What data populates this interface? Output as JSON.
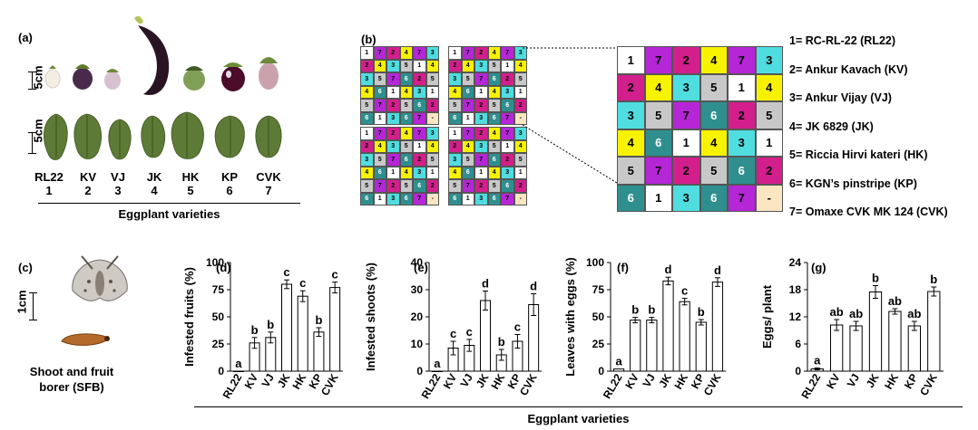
{
  "panels": {
    "a": "(a)",
    "b": "(b)",
    "c": "(c)"
  },
  "scale": {
    "fruit": "5cm",
    "leaf": "5cm",
    "insect": "1cm"
  },
  "varieties": [
    {
      "abbr": "RL22",
      "num": "1"
    },
    {
      "abbr": "KV",
      "num": "2"
    },
    {
      "abbr": "VJ",
      "num": "3"
    },
    {
      "abbr": "JK",
      "num": "4"
    },
    {
      "abbr": "HK",
      "num": "5"
    },
    {
      "abbr": "KP",
      "num": "6"
    },
    {
      "abbr": "CVK",
      "num": "7"
    }
  ],
  "a_xlabel": "Eggplant varieties",
  "c_caption": [
    "Shoot and fruit",
    "borer (SFB)"
  ],
  "legend": [
    "1= RC-RL-22 (RL22)",
    "2= Ankur Kavach (KV)",
    "3= Ankur Vijay (VJ)",
    "4= JK 6829 (JK)",
    "5= Riccia Hirvi kateri (HK)",
    "6= KGN’s pinstripe (KP)",
    "7= Omaxe CVK MK 124 (CVK)"
  ],
  "colors": {
    "1": "#ffffff",
    "2": "#d21f8c",
    "3": "#4fdde0",
    "4": "#f7f200",
    "5": "#c8c8c8",
    "6": "#2f8f8f",
    "7": "#b526d6",
    "-": "#fbe6c2"
  },
  "grid": [
    [
      "1",
      "7",
      "2",
      "4",
      "7",
      "3"
    ],
    [
      "2",
      "4",
      "3",
      "5",
      "1",
      "4"
    ],
    [
      "3",
      "5",
      "7",
      "6",
      "2",
      "5"
    ],
    [
      "4",
      "6",
      "1",
      "4",
      "3",
      "1"
    ],
    [
      "5",
      "7",
      "2",
      "5",
      "6",
      "2"
    ],
    [
      "6",
      "1",
      "3",
      "6",
      "7",
      "-"
    ]
  ],
  "bottom_xlabel": "Eggplant varieties",
  "chart_data": [
    {
      "panel": "(d)",
      "type": "bar",
      "categories": [
        "RL22",
        "KV",
        "VJ",
        "JK",
        "HK",
        "KP",
        "CVK"
      ],
      "values": [
        0,
        26,
        31,
        80,
        69,
        36,
        77
      ],
      "errors": [
        0,
        5,
        5,
        4,
        5,
        4,
        5
      ],
      "letters": [
        "a",
        "b",
        "b",
        "c",
        "c",
        "b",
        "c"
      ],
      "ylabel": "Infested fruits (%)",
      "ylim": [
        0,
        100
      ],
      "yticks": [
        "0",
        "25",
        "50",
        "75",
        "100"
      ]
    },
    {
      "panel": "(e)",
      "type": "bar",
      "categories": [
        "RL22",
        "KV",
        "VJ",
        "JK",
        "HK",
        "KP",
        "CVK"
      ],
      "values": [
        0,
        8.5,
        9.5,
        26,
        6,
        11,
        24.5
      ],
      "errors": [
        0,
        2.5,
        2.2,
        3.5,
        2,
        2.5,
        4
      ],
      "letters": [
        "a",
        "c",
        "c",
        "d",
        "b",
        "c",
        "d"
      ],
      "ylabel": "Infested shoots (%)",
      "ylim": [
        0,
        40
      ],
      "yticks": [
        "0",
        "10",
        "20",
        "30",
        "40"
      ]
    },
    {
      "panel": "(f)",
      "type": "bar",
      "categories": [
        "RL22",
        "KV",
        "VJ",
        "JK",
        "HK",
        "KP",
        "CVK"
      ],
      "values": [
        2,
        47,
        47,
        83,
        64,
        45,
        82
      ],
      "errors": [
        0,
        2.5,
        2.5,
        3.5,
        3,
        2.5,
        4
      ],
      "letters": [
        "a",
        "b",
        "b",
        "d",
        "c",
        "b",
        "d"
      ],
      "ylabel": "Leaves with eggs (%)",
      "ylim": [
        0,
        100
      ],
      "yticks": [
        "0",
        "25",
        "50",
        "75",
        "100"
      ]
    },
    {
      "panel": "(g)",
      "type": "bar",
      "categories": [
        "RL22",
        "KV",
        "VJ",
        "JK",
        "HK",
        "KP",
        "CVK"
      ],
      "values": [
        0.5,
        10.2,
        10,
        17.5,
        13.2,
        10,
        17.6
      ],
      "errors": [
        0.2,
        1.2,
        1,
        1.4,
        0.6,
        1,
        1
      ],
      "letters": [
        "a",
        "ab",
        "ab",
        "b",
        "ab",
        "ab",
        "b"
      ],
      "ylabel": "Eggs/ plant",
      "ylim": [
        0,
        24
      ],
      "yticks": [
        "0",
        "6",
        "12",
        "18",
        "24"
      ]
    }
  ]
}
